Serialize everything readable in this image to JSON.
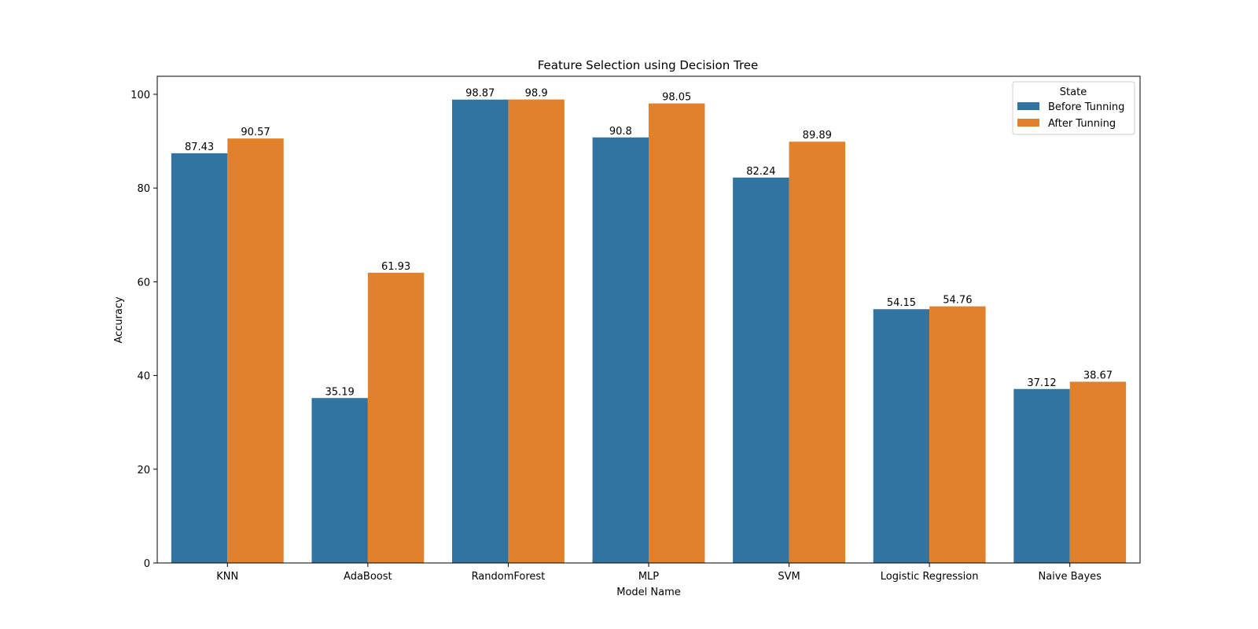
{
  "chart_data": {
    "type": "bar",
    "title": "Feature Selection using Decision Tree",
    "xlabel": "Model Name",
    "ylabel": "Accuracy",
    "ylim": [
      0,
      103.85
    ],
    "yticks": [
      0,
      20,
      40,
      60,
      80,
      100
    ],
    "grid": false,
    "legend": {
      "title": "State",
      "position": "top-right"
    },
    "categories": [
      "KNN",
      "AdaBoost",
      "RandomForest",
      "MLP",
      "SVM",
      "Logistic Regression",
      "Naive Bayes"
    ],
    "series": [
      {
        "name": "Before Tunning",
        "color": "#3274a1",
        "values": [
          87.43,
          35.19,
          98.87,
          90.8,
          82.24,
          54.15,
          37.12
        ]
      },
      {
        "name": "After Tunning",
        "color": "#e1812c",
        "values": [
          90.57,
          61.93,
          98.9,
          98.05,
          89.89,
          54.76,
          38.67
        ]
      }
    ]
  }
}
